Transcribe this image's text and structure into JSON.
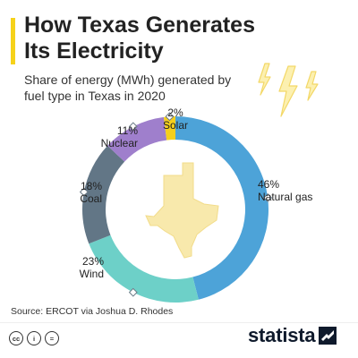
{
  "header": {
    "title": "How Texas Generates Its Electricity",
    "subtitle": "Share of energy (MWh) generated by fuel type in Texas in 2020"
  },
  "colors": {
    "accent": "#f6d21a",
    "texas_fill": "#f8e9ac",
    "bolt_fill": "#fcf0b0",
    "bolt_stroke": "#f3d867"
  },
  "chart_data": {
    "type": "donut",
    "title": "How Texas Generates Its Electricity",
    "subtitle": "Share of energy (MWh) generated by fuel type in Texas in 2020",
    "unit": "%",
    "slices": [
      {
        "label": "Natural gas",
        "value": 46,
        "display": "46%",
        "color": "#4da3d8"
      },
      {
        "label": "Wind",
        "value": 23,
        "display": "23%",
        "color": "#6dd0c8"
      },
      {
        "label": "Coal",
        "value": 18,
        "display": "18%",
        "color": "#627686"
      },
      {
        "label": "Nuclear",
        "value": 11,
        "display": "11%",
        "color": "#9f7fcc"
      },
      {
        "label": "Solar",
        "value": 2,
        "display": "2%",
        "color": "#f5cf1d"
      }
    ]
  },
  "footer": {
    "source": "Source: ERCOT via Joshua D. Rhodes",
    "licenses": [
      {
        "icon": "cc-icon",
        "glyph": "cc"
      },
      {
        "icon": "attribution-icon",
        "glyph": "i"
      },
      {
        "icon": "no-derivatives-icon",
        "glyph": "="
      }
    ],
    "brand": "statista"
  }
}
